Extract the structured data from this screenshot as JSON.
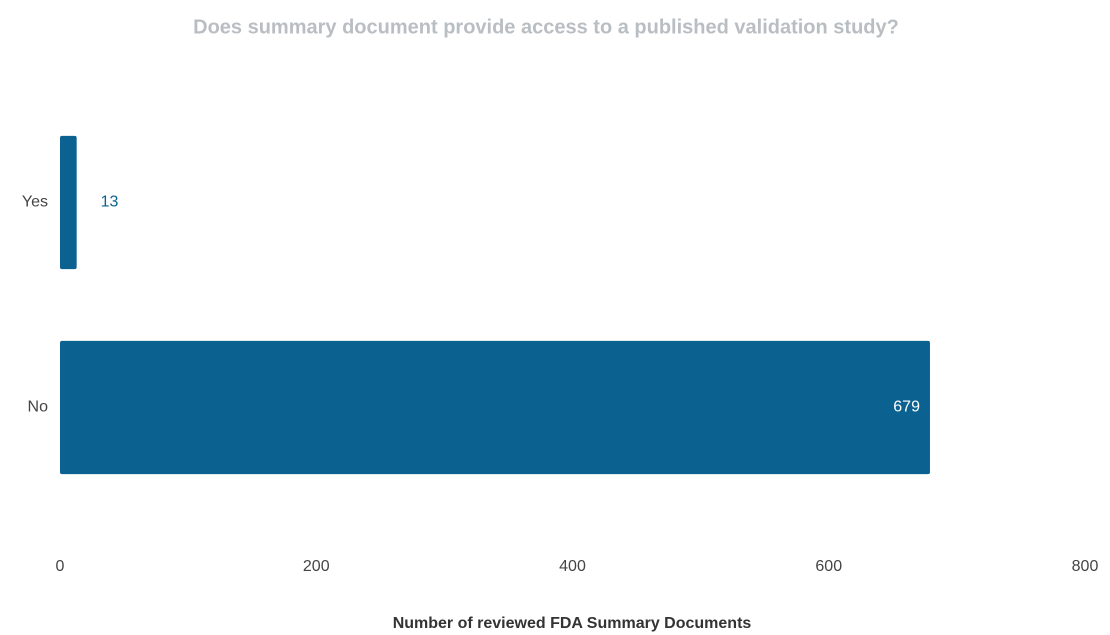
{
  "chart_data": {
    "type": "bar",
    "orientation": "horizontal",
    "title": "Does summary document provide access to a published validation study?",
    "categories": [
      "Yes",
      "No"
    ],
    "values": [
      13,
      679
    ],
    "color": "#0b6190",
    "x_label": "Number of reviewed FDA Summary Documents",
    "xlim": [
      0,
      800
    ],
    "xticks": [
      0,
      200,
      400,
      600,
      800
    ],
    "grid": false
  }
}
